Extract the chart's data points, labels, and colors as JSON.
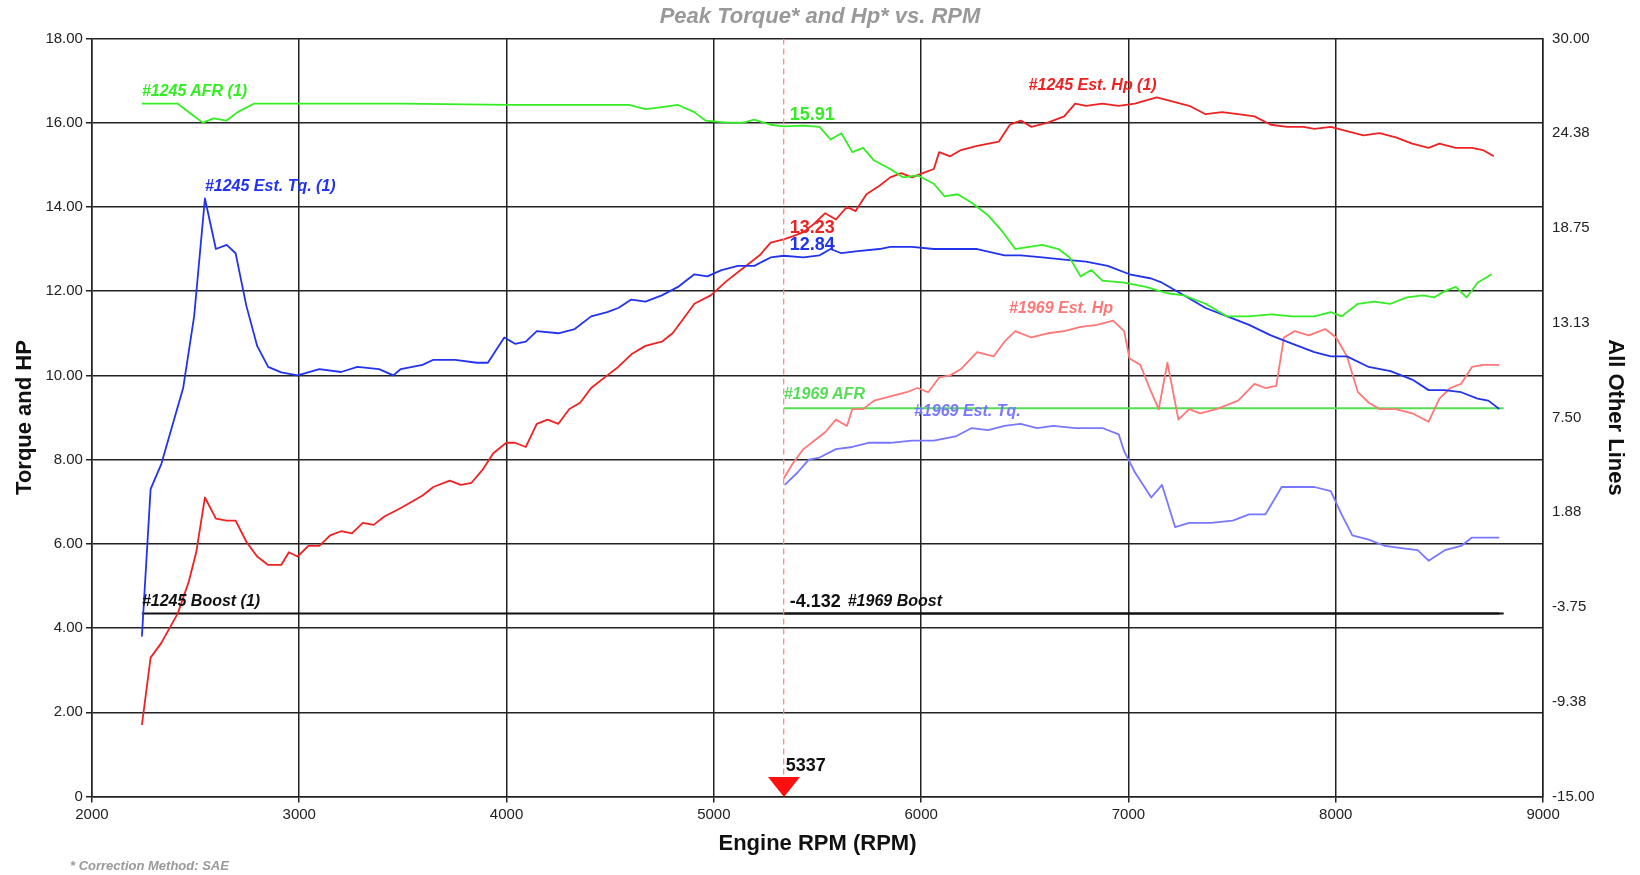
{
  "chart_data": {
    "type": "line",
    "title": "Peak Torque* and Hp* vs. RPM",
    "xlabel": "Engine RPM (RPM)",
    "ylabel": "Torque and HP",
    "y2label": "All Other Lines",
    "xlim": [
      2000,
      9000
    ],
    "xticks": [
      2000,
      3000,
      4000,
      5000,
      6000,
      7000,
      8000,
      9000
    ],
    "ylim": [
      0,
      18
    ],
    "yticks": [
      0,
      {
        "value": 2,
        "label": "2.00"
      },
      {
        "value": 4,
        "label": "4.00"
      },
      {
        "value": 6,
        "label": "6.00"
      },
      {
        "value": 8,
        "label": "8.00"
      },
      {
        "value": 10,
        "label": "10.00"
      },
      {
        "value": 12,
        "label": "12.00"
      },
      {
        "value": 14,
        "label": "14.00"
      },
      {
        "value": 16,
        "label": "16.00"
      },
      {
        "value": 18,
        "label": "18.00"
      }
    ],
    "y2lim": [
      -15,
      30
    ],
    "y2ticks": [
      {
        "value": -15,
        "label": "-15.00"
      },
      {
        "value": -9.375,
        "label": "-9.38"
      },
      {
        "value": -3.75,
        "label": "-3.75"
      },
      {
        "value": 1.875,
        "label": "1.88"
      },
      {
        "value": 7.5,
        "label": "7.50"
      },
      {
        "value": 13.125,
        "label": "13.13"
      },
      {
        "value": 18.75,
        "label": "18.75"
      },
      {
        "value": 24.375,
        "label": "24.38"
      },
      {
        "value": 30,
        "label": "30.00"
      }
    ],
    "grid": true,
    "legend": false,
    "ref_lines": [
      {
        "axis": "x",
        "value": 5337,
        "label": "5337",
        "color": "#ff8080",
        "line_style": "dashed"
      }
    ],
    "annotations": [
      "* Correction Method: SAE"
    ],
    "series": [
      {
        "name": "#1245 AFR (1)",
        "color": "#33ee22",
        "x": [
          2241,
          2414,
          2493,
          2535,
          2587,
          2650,
          2703,
          2781,
          2965,
          3490,
          4015,
          4329,
          4591,
          4670,
          4749,
          4827,
          4906,
          4959,
          5064,
          5142,
          5195,
          5274,
          5337,
          5432,
          5510,
          5563,
          5615,
          5668,
          5720,
          5773,
          5851,
          5914,
          5982,
          6061,
          6113,
          6176,
          6244,
          6323,
          6386,
          6454,
          6522,
          6585,
          6663,
          6716,
          6769,
          6821,
          6874,
          6979,
          7084,
          7188,
          7267,
          7372,
          7477,
          7582,
          7687,
          7792,
          7897,
          7976,
          8028,
          8107,
          8185,
          8264,
          8343,
          8421,
          8474,
          8526,
          8579,
          8631,
          8684,
          8752
        ],
        "values": [
          16.45,
          16.45,
          16.15,
          16.0,
          16.1,
          16.05,
          16.25,
          16.45,
          16.45,
          16.45,
          16.42,
          16.42,
          16.42,
          16.32,
          16.37,
          16.42,
          16.25,
          16.05,
          16.0,
          16.0,
          16.07,
          15.95,
          15.91,
          15.93,
          15.9,
          15.6,
          15.75,
          15.3,
          15.4,
          15.1,
          14.9,
          14.7,
          14.75,
          14.55,
          14.25,
          14.3,
          14.1,
          13.8,
          13.45,
          13.0,
          13.05,
          13.1,
          13.0,
          12.8,
          12.35,
          12.5,
          12.25,
          12.2,
          12.1,
          11.95,
          11.9,
          11.7,
          11.4,
          11.4,
          11.45,
          11.4,
          11.4,
          11.5,
          11.4,
          11.7,
          11.75,
          11.7,
          11.85,
          11.9,
          11.85,
          12.0,
          12.1,
          11.85,
          12.2,
          12.4
        ],
        "value_labels": [
          null,
          null,
          null,
          null,
          null,
          null,
          null,
          null,
          null,
          null,
          null,
          null,
          null,
          null,
          null,
          null,
          null,
          null,
          null,
          null,
          null,
          null,
          "15.91",
          null,
          null,
          null,
          null,
          null,
          null,
          null,
          null,
          null,
          null,
          null,
          null,
          null,
          null,
          null,
          null,
          null,
          null,
          null,
          null,
          null,
          null,
          null,
          null,
          null,
          null,
          null,
          null,
          null,
          null,
          null,
          null,
          null,
          null,
          null,
          null,
          null,
          null,
          null,
          null,
          null,
          null,
          null,
          null,
          null,
          null,
          null
        ]
      },
      {
        "name": "#1245 Est. Tq. (1)",
        "color": "#2233ee",
        "x": [
          2241,
          2283,
          2335,
          2440,
          2493,
          2545,
          2598,
          2650,
          2693,
          2745,
          2797,
          2850,
          2913,
          2992,
          3097,
          3202,
          3280,
          3385,
          3454,
          3490,
          3595,
          3647,
          3752,
          3857,
          3910,
          3989,
          4041,
          4093,
          4146,
          4250,
          4329,
          4408,
          4486,
          4539,
          4602,
          4670,
          4749,
          4827,
          4906,
          4969,
          5037,
          5116,
          5195,
          5274,
          5337,
          5432,
          5510,
          5563,
          5615,
          5694,
          5799,
          5851,
          5956,
          6061,
          6166,
          6270,
          6402,
          6480,
          6585,
          6690,
          6795,
          6900,
          7005,
          7110,
          7162,
          7267,
          7372,
          7477,
          7582,
          7687,
          7792,
          7897,
          7976,
          8054,
          8159,
          8264,
          8369,
          8448,
          8526,
          8605,
          8684,
          8736,
          8789
        ],
        "values": [
          3.8,
          7.3,
          7.9,
          9.7,
          11.4,
          14.2,
          13.0,
          13.1,
          12.9,
          11.65,
          10.7,
          10.2,
          10.07,
          10.0,
          10.15,
          10.08,
          10.2,
          10.15,
          10.0,
          10.15,
          10.25,
          10.37,
          10.37,
          10.3,
          10.3,
          10.9,
          10.75,
          10.8,
          11.05,
          11.0,
          11.1,
          11.4,
          11.5,
          11.6,
          11.8,
          11.75,
          11.9,
          12.1,
          12.4,
          12.35,
          12.5,
          12.6,
          12.6,
          12.8,
          12.84,
          12.8,
          12.85,
          13.0,
          12.9,
          12.95,
          13.0,
          13.05,
          13.05,
          13.0,
          13.0,
          13.0,
          12.85,
          12.85,
          12.8,
          12.75,
          12.7,
          12.6,
          12.4,
          12.3,
          12.2,
          11.9,
          11.6,
          11.4,
          11.2,
          10.95,
          10.75,
          10.55,
          10.45,
          10.45,
          10.2,
          10.1,
          9.9,
          9.65,
          9.65,
          9.6,
          9.45,
          9.4,
          9.2
        ],
        "value_labels": [
          null,
          null,
          null,
          null,
          null,
          null,
          null,
          null,
          null,
          null,
          null,
          null,
          null,
          null,
          null,
          null,
          null,
          null,
          null,
          null,
          null,
          null,
          null,
          null,
          null,
          null,
          null,
          null,
          null,
          null,
          null,
          null,
          null,
          null,
          null,
          null,
          null,
          null,
          null,
          null,
          null,
          null,
          null,
          null,
          "12.84",
          null,
          null,
          null,
          null,
          null,
          null,
          null,
          null,
          null,
          null,
          null,
          null,
          null,
          null,
          null,
          null,
          null,
          null,
          null,
          null,
          null,
          null,
          null,
          null,
          null,
          null,
          null,
          null,
          null,
          null,
          null,
          null,
          null,
          null,
          null,
          null,
          null,
          null
        ]
      },
      {
        "name": "#1245 Est. Hp (1)",
        "color": "#ee2222",
        "x": [
          2241,
          2283,
          2335,
          2414,
          2467,
          2503,
          2545,
          2598,
          2650,
          2693,
          2745,
          2797,
          2850,
          2913,
          2950,
          2992,
          3044,
          3097,
          3149,
          3202,
          3254,
          3307,
          3359,
          3411,
          3490,
          3543,
          3595,
          3647,
          3726,
          3779,
          3831,
          3883,
          3936,
          3999,
          4041,
          4093,
          4146,
          4198,
          4250,
          4303,
          4355,
          4408,
          4486,
          4539,
          4602,
          4670,
          4749,
          4801,
          4854,
          4906,
          4985,
          5064,
          5142,
          5221,
          5274,
          5337,
          5380,
          5432,
          5484,
          5537,
          5589,
          5642,
          5684,
          5736,
          5799,
          5851,
          5904,
          5956,
          6008,
          6061,
          6087,
          6140,
          6192,
          6270,
          6375,
          6428,
          6480,
          6532,
          6611,
          6690,
          6743,
          6795,
          6874,
          6953,
          7031,
          7136,
          7215,
          7293,
          7372,
          7451,
          7529,
          7608,
          7687,
          7766,
          7844,
          7897,
          7976,
          8054,
          8133,
          8211,
          8290,
          8369,
          8448,
          8500,
          8579,
          8657,
          8710,
          8762
        ],
        "values": [
          1.7,
          3.3,
          3.65,
          4.35,
          5.1,
          5.8,
          7.1,
          6.6,
          6.55,
          6.55,
          6.05,
          5.7,
          5.5,
          5.5,
          5.8,
          5.7,
          5.95,
          5.95,
          6.2,
          6.3,
          6.25,
          6.5,
          6.45,
          6.65,
          6.85,
          7.0,
          7.15,
          7.35,
          7.5,
          7.4,
          7.45,
          7.75,
          8.15,
          8.4,
          8.4,
          8.3,
          8.85,
          8.95,
          8.85,
          9.2,
          9.35,
          9.7,
          10.0,
          10.2,
          10.5,
          10.7,
          10.8,
          11.0,
          11.35,
          11.7,
          11.9,
          12.25,
          12.55,
          12.85,
          13.15,
          13.23,
          13.3,
          13.4,
          13.6,
          13.85,
          13.7,
          14.0,
          13.9,
          14.3,
          14.5,
          14.7,
          14.8,
          14.7,
          14.8,
          14.9,
          15.3,
          15.2,
          15.35,
          15.45,
          15.55,
          15.95,
          16.05,
          15.9,
          16.0,
          16.15,
          16.45,
          16.4,
          16.45,
          16.4,
          16.45,
          16.6,
          16.5,
          16.4,
          16.2,
          16.25,
          16.2,
          16.15,
          15.95,
          15.9,
          15.9,
          15.85,
          15.9,
          15.8,
          15.7,
          15.75,
          15.65,
          15.5,
          15.4,
          15.5,
          15.4,
          15.4,
          15.35,
          15.2
        ],
        "value_labels": [
          null,
          null,
          null,
          null,
          null,
          null,
          null,
          null,
          null,
          null,
          null,
          null,
          null,
          null,
          null,
          null,
          null,
          null,
          null,
          null,
          null,
          null,
          null,
          null,
          null,
          null,
          null,
          null,
          null,
          null,
          null,
          null,
          null,
          null,
          null,
          null,
          null,
          null,
          null,
          null,
          null,
          null,
          null,
          null,
          null,
          null,
          null,
          null,
          null,
          null,
          null,
          null,
          null,
          null,
          null,
          "13.23",
          null,
          null,
          null,
          null,
          null,
          null,
          null,
          null,
          null,
          null,
          null,
          null,
          null,
          null,
          null,
          null,
          null,
          null,
          null,
          null,
          null,
          null,
          null,
          null,
          null,
          null,
          null,
          null,
          null,
          null,
          null,
          null,
          null,
          null,
          null,
          null,
          null,
          null,
          null,
          null,
          null,
          null,
          null,
          null,
          null,
          null,
          null,
          null,
          null,
          null,
          null,
          null
        ]
      },
      {
        "name": "#1245 Boost (1)",
        "color": "#111111",
        "axis": "y2",
        "x": [
          2241,
          5337,
          8789
        ],
        "values": [
          -4.132,
          -4.132,
          -4.132
        ],
        "value_labels": [
          null,
          "-4.132",
          null
        ]
      },
      {
        "name": "#1969 Est. Hp",
        "color": "#ff7777",
        "x": [
          5337,
          5380,
          5432,
          5484,
          5537,
          5589,
          5642,
          5668,
          5720,
          5773,
          5851,
          5930,
          5982,
          6034,
          6087,
          6140,
          6192,
          6270,
          6349,
          6402,
          6454,
          6532,
          6611,
          6690,
          6769,
          6848,
          6926,
          6979,
          7005,
          7057,
          7110,
          7146,
          7188,
          7241,
          7293,
          7346,
          7424,
          7477,
          7529,
          7608,
          7661,
          7713,
          7750,
          7802,
          7870,
          7949,
          8002,
          8054,
          8107,
          8159,
          8211,
          8290,
          8369,
          8448,
          8500,
          8553,
          8605,
          8657,
          8710,
          8789
        ],
        "values": [
          7.55,
          7.9,
          8.25,
          8.45,
          8.65,
          8.95,
          8.8,
          9.2,
          9.2,
          9.4,
          9.5,
          9.6,
          9.7,
          9.6,
          9.95,
          10.0,
          10.15,
          10.55,
          10.45,
          10.8,
          11.05,
          10.9,
          11.0,
          11.05,
          11.15,
          11.2,
          11.3,
          11.05,
          10.4,
          10.25,
          9.6,
          9.2,
          10.3,
          8.95,
          9.2,
          9.1,
          9.2,
          9.3,
          9.4,
          9.8,
          9.7,
          9.75,
          10.9,
          11.05,
          10.95,
          11.1,
          10.9,
          10.45,
          9.6,
          9.35,
          9.2,
          9.2,
          9.1,
          8.9,
          9.45,
          9.7,
          9.8,
          10.2,
          10.25,
          10.25
        ]
      },
      {
        "name": "#1969 AFR",
        "color": "#55dd55",
        "x": [
          5337,
          8810
        ],
        "values": [
          9.22,
          9.22
        ]
      },
      {
        "name": "#1969 Est. Tq.",
        "color": "#7777ff",
        "x": [
          5342,
          5405,
          5458,
          5510,
          5589,
          5668,
          5746,
          5851,
          5956,
          6061,
          6166,
          6244,
          6323,
          6402,
          6480,
          6559,
          6637,
          6743,
          6874,
          6953,
          6979,
          7031,
          7110,
          7162,
          7225,
          7293,
          7398,
          7503,
          7582,
          7661,
          7739,
          7897,
          7976,
          8028,
          8080,
          8159,
          8238,
          8316,
          8395,
          8448,
          8526,
          8605,
          8657,
          8789
        ],
        "values": [
          7.4,
          7.7,
          8.0,
          8.05,
          8.25,
          8.3,
          8.4,
          8.4,
          8.45,
          8.45,
          8.55,
          8.75,
          8.7,
          8.8,
          8.85,
          8.75,
          8.8,
          8.75,
          8.75,
          8.6,
          8.2,
          7.7,
          7.1,
          7.4,
          6.4,
          6.5,
          6.5,
          6.55,
          6.7,
          6.7,
          7.35,
          7.35,
          7.25,
          6.7,
          6.2,
          6.1,
          5.95,
          5.9,
          5.85,
          5.6,
          5.85,
          5.95,
          6.15,
          6.15
        ]
      },
      {
        "name": "#1969 Boost",
        "color": "#111111",
        "axis": "y2",
        "x": [
          5337,
          8810
        ],
        "values": [
          -4.132,
          -4.132
        ]
      }
    ]
  }
}
